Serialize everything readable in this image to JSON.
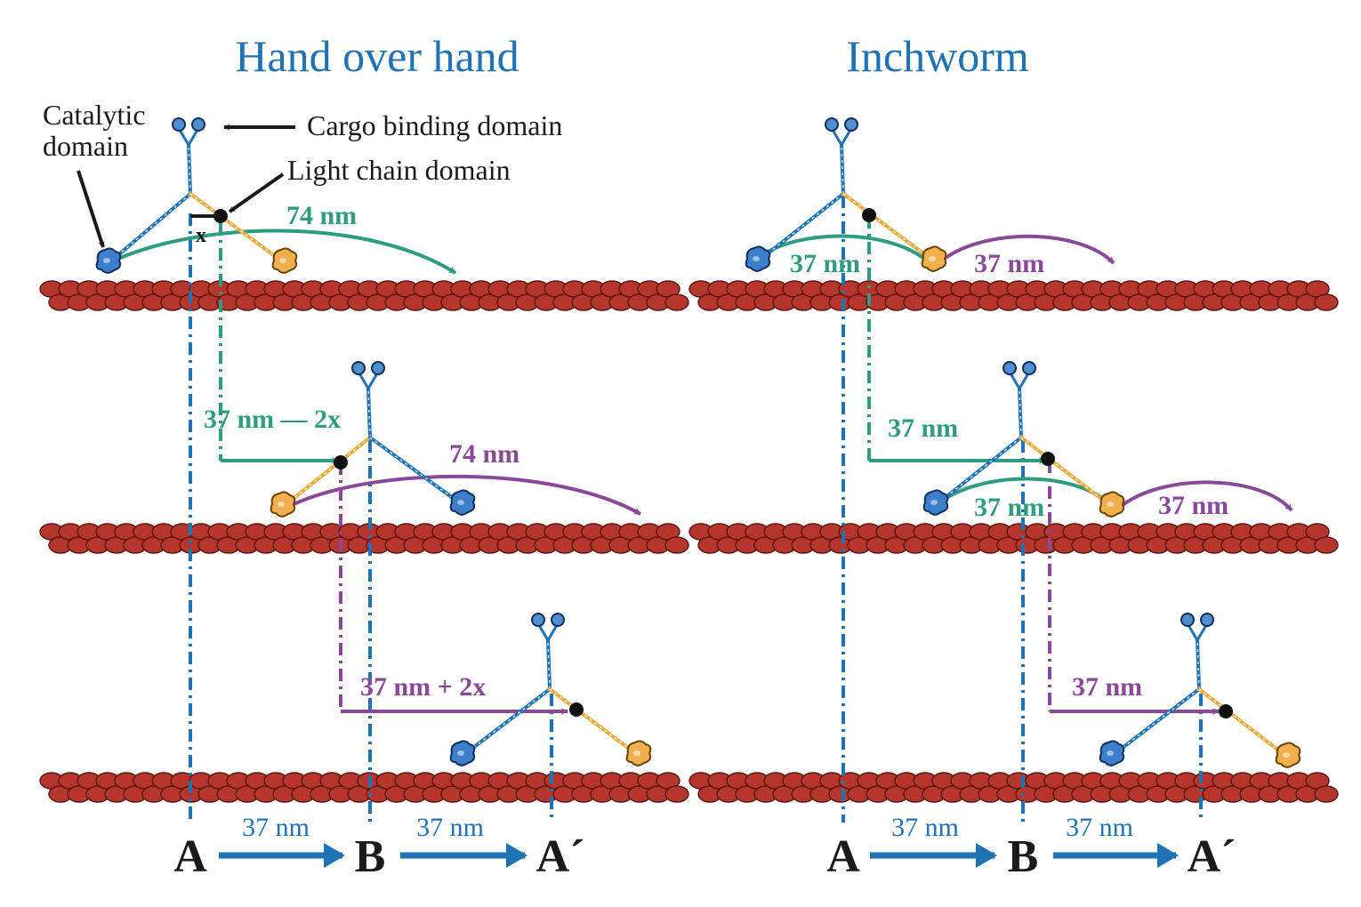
{
  "panels": {
    "left": {
      "title": "Hand over hand",
      "labels": {
        "catalytic_line1": "Catalytic",
        "catalytic_line2": "domain",
        "cargo": "Cargo binding domain",
        "light_chain": "Light chain domain",
        "x": "x"
      },
      "steps": {
        "step1_green": "74 nm",
        "step2_green": "37 nm — 2x",
        "step2_purple": "74 nm",
        "step3_purple": "37 nm + 2x"
      },
      "axis": {
        "pos1": "A",
        "pos2": "B",
        "pos3": "A´",
        "dist1": "37 nm",
        "dist2": "37 nm"
      }
    },
    "right": {
      "title": "Inchworm",
      "steps": {
        "step1_green": "37 nm",
        "step1_purple": "37 nm",
        "step2_green_top": "37 nm",
        "step2_green": "37 nm",
        "step2_purple": "37 nm",
        "step3_purple": "37 nm"
      },
      "axis": {
        "pos1": "A",
        "pos2": "B",
        "pos3": "A´",
        "dist1": "37 nm",
        "dist2": "37 nm"
      }
    }
  },
  "colors": {
    "myosin_blue": "#1f72b4",
    "lever_orange": "#e8a93a",
    "actin_red": "#b6352c",
    "green_arrow": "#2e9c80",
    "purple_arrow": "#8a4899"
  }
}
